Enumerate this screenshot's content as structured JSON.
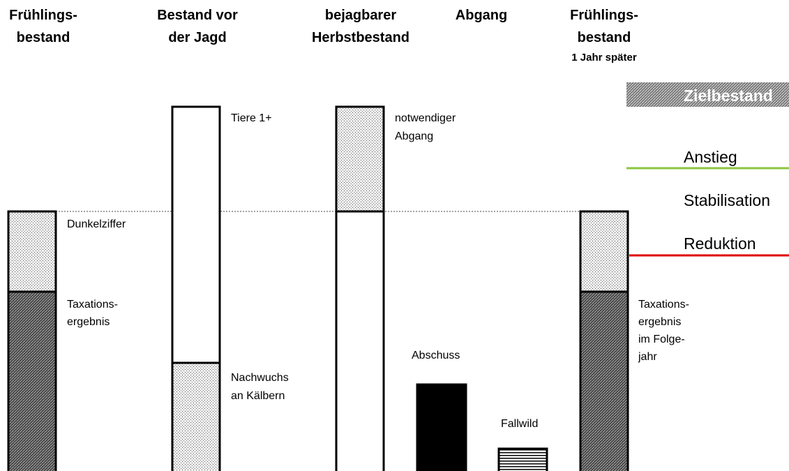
{
  "headers": [
    {
      "lines": [
        "Frühlings-",
        "bestand"
      ]
    },
    {
      "lines": [
        "Bestand vor",
        "der Jagd"
      ]
    },
    {
      "lines": [
        "bejagbarer",
        "Herbstbestand"
      ]
    },
    {
      "lines": [
        "Abgang"
      ]
    },
    {
      "lines": [
        "Frühlings-",
        "bestand"
      ],
      "note": "1 Jahr später"
    }
  ],
  "labels": {
    "dunkelziffer": [
      "Dunkelziffer"
    ],
    "taxation": [
      "Taxations-",
      "ergebnis"
    ],
    "tiere": [
      "Tiere 1+"
    ],
    "nachwuchs": [
      "Nachwuchs",
      "an Kälbern"
    ],
    "notwendig": [
      "notwendiger",
      "Abgang"
    ],
    "abschuss": [
      "Abschuss"
    ],
    "fallwild": [
      "Fallwild"
    ],
    "taxation_folge": [
      "Taxations-",
      "ergebnis",
      "im Folge-",
      "jahr"
    ]
  },
  "legend": {
    "target": "Zielbestand",
    "rise": "Anstieg",
    "stable": "Stabilisation",
    "reduce": "Reduktion"
  }
}
